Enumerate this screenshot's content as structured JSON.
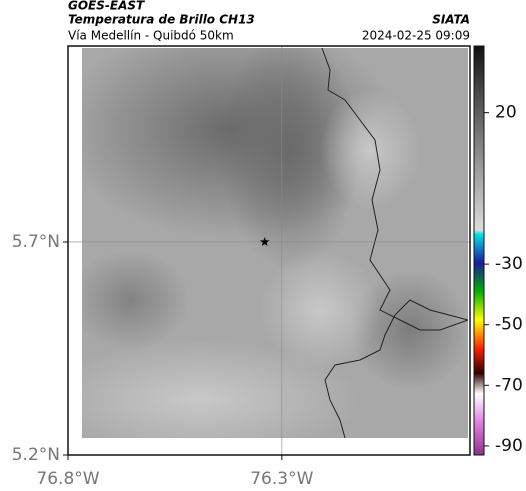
{
  "header": {
    "satellite": "GOES-EAST",
    "title": "Temperatura de Brillo CH13",
    "subtitle": "Vía Medellín - Quibdó 50km",
    "source": "SIATA",
    "datetime": "2024-02-25 09:09"
  },
  "map": {
    "xlim": [
      -76.8,
      -75.86
    ],
    "ylim": [
      5.2,
      6.16
    ],
    "xticks": [
      {
        "value": -76.8,
        "label": "76.8°W"
      },
      {
        "value": -76.3,
        "label": "76.3°W"
      }
    ],
    "yticks": [
      {
        "value": 5.2,
        "label": "5.2°N"
      },
      {
        "value": 5.7,
        "label": "5.7°N"
      }
    ],
    "grid": true,
    "marker": {
      "lon": -76.34,
      "lat": 5.7
    }
  },
  "colorbar": {
    "lim": [
      42,
      -93
    ],
    "ticks": [
      20,
      -30,
      -50,
      -70,
      -90
    ]
  }
}
